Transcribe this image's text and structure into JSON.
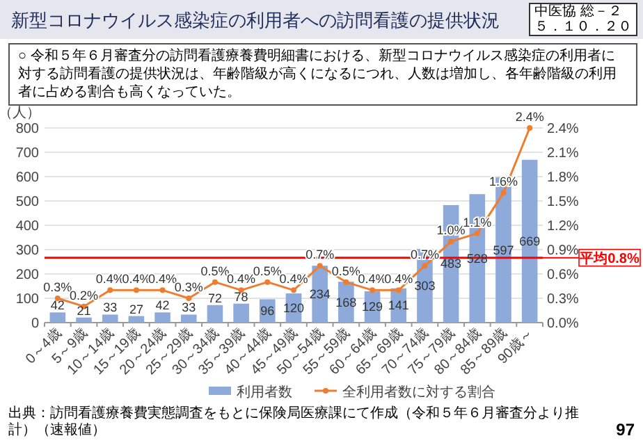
{
  "chart_data": {
    "type": "bar",
    "title": "新型コロナウイルス感染症の利用者への訪問看護の提供状況",
    "subtitle": "○ 令和５年６月審査分の訪問看護療養費明細書における、新型コロナウイルス感染症の利用者に対する訪問看護の提供状況は、年齢階級が高くになるにつれ、人数は増加し、各年齢階級の利用者に占める割合も高くなっていた。",
    "ylabel": "（人）",
    "categories": [
      "0～4歳",
      "5～9歳",
      "10～14歳",
      "15～19歳",
      "20～24歳",
      "25～29歳",
      "30～34歳",
      "35～39歳",
      "40～44歳",
      "45～49歳",
      "50～54歳",
      "55～59歳",
      "60～64歳",
      "65～69歳",
      "70～74歳",
      "75～79歳",
      "80～84歳",
      "85～89歳",
      "90歳～"
    ],
    "series": [
      {
        "name": "利用者数",
        "color": "#8eaadb",
        "values": [
          42,
          21,
          33,
          27,
          42,
          33,
          72,
          78,
          96,
          120,
          234,
          168,
          129,
          141,
          303,
          483,
          528,
          597,
          669
        ]
      },
      {
        "name": "全利用者数に対する割合",
        "type": "line",
        "axis": "y2",
        "color": "#ed7d31",
        "values": [
          0.3,
          0.2,
          0.4,
          0.4,
          0.4,
          0.3,
          0.5,
          0.4,
          0.5,
          0.4,
          0.7,
          0.5,
          0.4,
          0.4,
          0.7,
          1.0,
          1.1,
          1.6,
          2.4
        ],
        "value_labels": [
          "0.3%",
          "0.2%",
          "0.4%",
          "0.4%",
          "0.4%",
          "0.3%",
          "0.5%",
          "0.4%",
          "0.5%",
          "0.4%",
          "0.7%",
          "0.5%",
          "0.4%",
          "0.4%",
          "0.7%",
          "1.0%",
          "1.1%",
          "1.6%",
          "2.4%"
        ]
      }
    ],
    "data_labels": true,
    "ylim": [
      0,
      800
    ],
    "yticks": [
      0,
      100,
      200,
      300,
      400,
      500,
      600,
      700,
      800
    ],
    "y2lim": [
      0,
      2.4
    ],
    "y2ticks": [
      {
        "value": 0,
        "label": "0.0%"
      },
      {
        "value": 0.3,
        "label": "0.3%"
      },
      {
        "value": 0.6,
        "label": "0.6%"
      },
      {
        "value": 0.9,
        "label": "0.9%"
      },
      {
        "value": 1.2,
        "label": "1.2%"
      },
      {
        "value": 1.5,
        "label": "1.5%"
      },
      {
        "value": 1.8,
        "label": "1.8%"
      },
      {
        "value": 2.1,
        "label": "2.1%"
      },
      {
        "value": 2.4,
        "label": "2.4%"
      }
    ],
    "ref_lines": [
      {
        "axis": "y2",
        "value": 0.8,
        "label": "平均0.8%",
        "color": "#ff0000"
      }
    ],
    "grid": "y",
    "legend": "bottom",
    "marker": "circle",
    "annotations": [
      "中医協 総－２",
      "５．１０．２０",
      "出典：訪問看護療養費実態調査をもとに保険局医療課にて作成（令和５年６月審査分より推計）（速報値）",
      "97"
    ]
  }
}
